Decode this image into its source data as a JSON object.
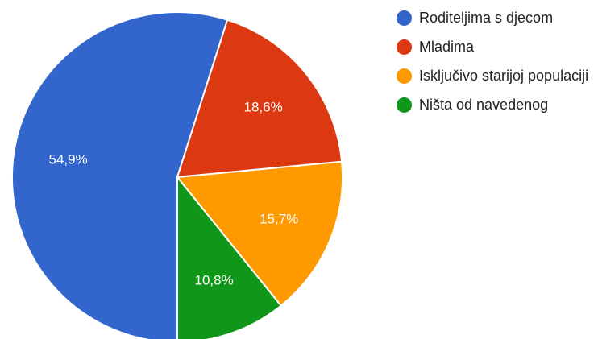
{
  "chart_data": {
    "type": "pie",
    "title": "",
    "start_angle_deg": 90,
    "direction": "clockwise",
    "slices": [
      {
        "label": "Roditeljima s djecom",
        "value": 54.9,
        "value_label": "54,9%",
        "color": "#3366cc"
      },
      {
        "label": "Mladima",
        "value": 18.6,
        "value_label": "18,6%",
        "color": "#dc3912"
      },
      {
        "label": "Isključivo starijoj populaciji",
        "value": 15.7,
        "value_label": "15,7%",
        "color": "#ff9900"
      },
      {
        "label": "Ništa od navedenog",
        "value": 10.8,
        "value_label": "10,8%",
        "color": "#109618"
      }
    ],
    "legend": {
      "position": "right"
    }
  }
}
